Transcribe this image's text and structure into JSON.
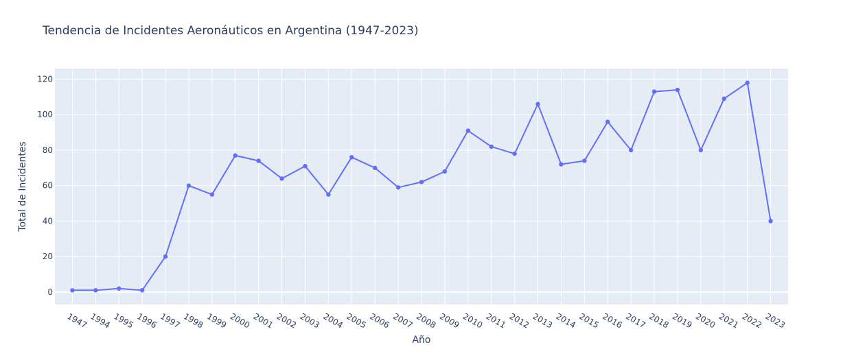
{
  "chart_data": {
    "type": "line",
    "title": "Tendencia de Incidentes Aeronáuticos en Argentina (1947-2023)",
    "xlabel": "Año",
    "ylabel": "Total de Incidentes",
    "x_type": "category",
    "categories": [
      "1947",
      "1994",
      "1995",
      "1996",
      "1997",
      "1998",
      "1999",
      "2000",
      "2001",
      "2002",
      "2003",
      "2004",
      "2005",
      "2006",
      "2007",
      "2008",
      "2009",
      "2010",
      "2011",
      "2012",
      "2013",
      "2014",
      "2015",
      "2016",
      "2017",
      "2018",
      "2019",
      "2020",
      "2021",
      "2022",
      "2023"
    ],
    "series": [
      {
        "values": [
          1,
          1,
          2,
          1,
          20,
          60,
          55,
          77,
          74,
          64,
          71,
          55,
          76,
          70,
          59,
          62,
          68,
          91,
          82,
          78,
          106,
          72,
          74,
          96,
          80,
          113,
          114,
          80,
          109,
          118,
          40
        ],
        "color": "#636efa",
        "mode": "lines+markers"
      }
    ],
    "ylim": [
      -7,
      126
    ],
    "yticks": [
      0,
      20,
      40,
      60,
      80,
      100,
      120
    ],
    "grid": true,
    "plot_background": "#e5ecf6",
    "grid_color": "#ffffff",
    "text_color": "#2a3f5f",
    "legend": "none"
  }
}
